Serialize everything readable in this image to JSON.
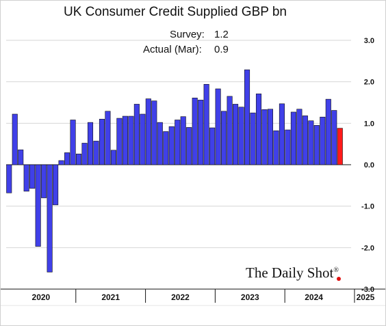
{
  "chart_data": {
    "type": "bar",
    "title": "UK Consumer Credit Supplied GBP bn",
    "annotations": [
      {
        "label": "Survey:",
        "value": "1.2"
      },
      {
        "label": "Actual (Mar):",
        "value": "0.9"
      }
    ],
    "y_ticks": [
      "3.0",
      "2.0",
      "1.0",
      "0.0",
      "-1.0",
      "-2.0",
      "-3.0"
    ],
    "ylim": [
      -3.0,
      3.0
    ],
    "grid": true,
    "years": [
      "2020",
      "2021",
      "2022",
      "2023",
      "2024",
      "2025"
    ],
    "first_month": "2020-01",
    "x_period": "monthly",
    "bar_color": "#4040e8",
    "highlight_color": "#ff1a1a",
    "values": [
      -0.68,
      1.22,
      0.36,
      -0.64,
      -0.57,
      -1.97,
      -0.8,
      -2.59,
      -0.97,
      0.1,
      0.29,
      1.08,
      0.26,
      0.52,
      1.02,
      0.57,
      1.1,
      1.29,
      0.35,
      1.12,
      1.17,
      1.17,
      1.46,
      1.22,
      1.59,
      1.54,
      1.02,
      0.8,
      0.92,
      1.08,
      1.16,
      0.9,
      1.61,
      1.56,
      1.94,
      0.89,
      1.83,
      1.29,
      1.65,
      1.46,
      1.39,
      2.29,
      1.25,
      1.71,
      1.33,
      1.34,
      0.82,
      1.47,
      0.84,
      1.27,
      1.34,
      1.18,
      1.06,
      0.95,
      1.15,
      1.58,
      1.31,
      0.88
    ],
    "highlight_index": 57
  },
  "branding": {
    "logo": "The Daily Shot",
    "logo_mark": "®"
  }
}
